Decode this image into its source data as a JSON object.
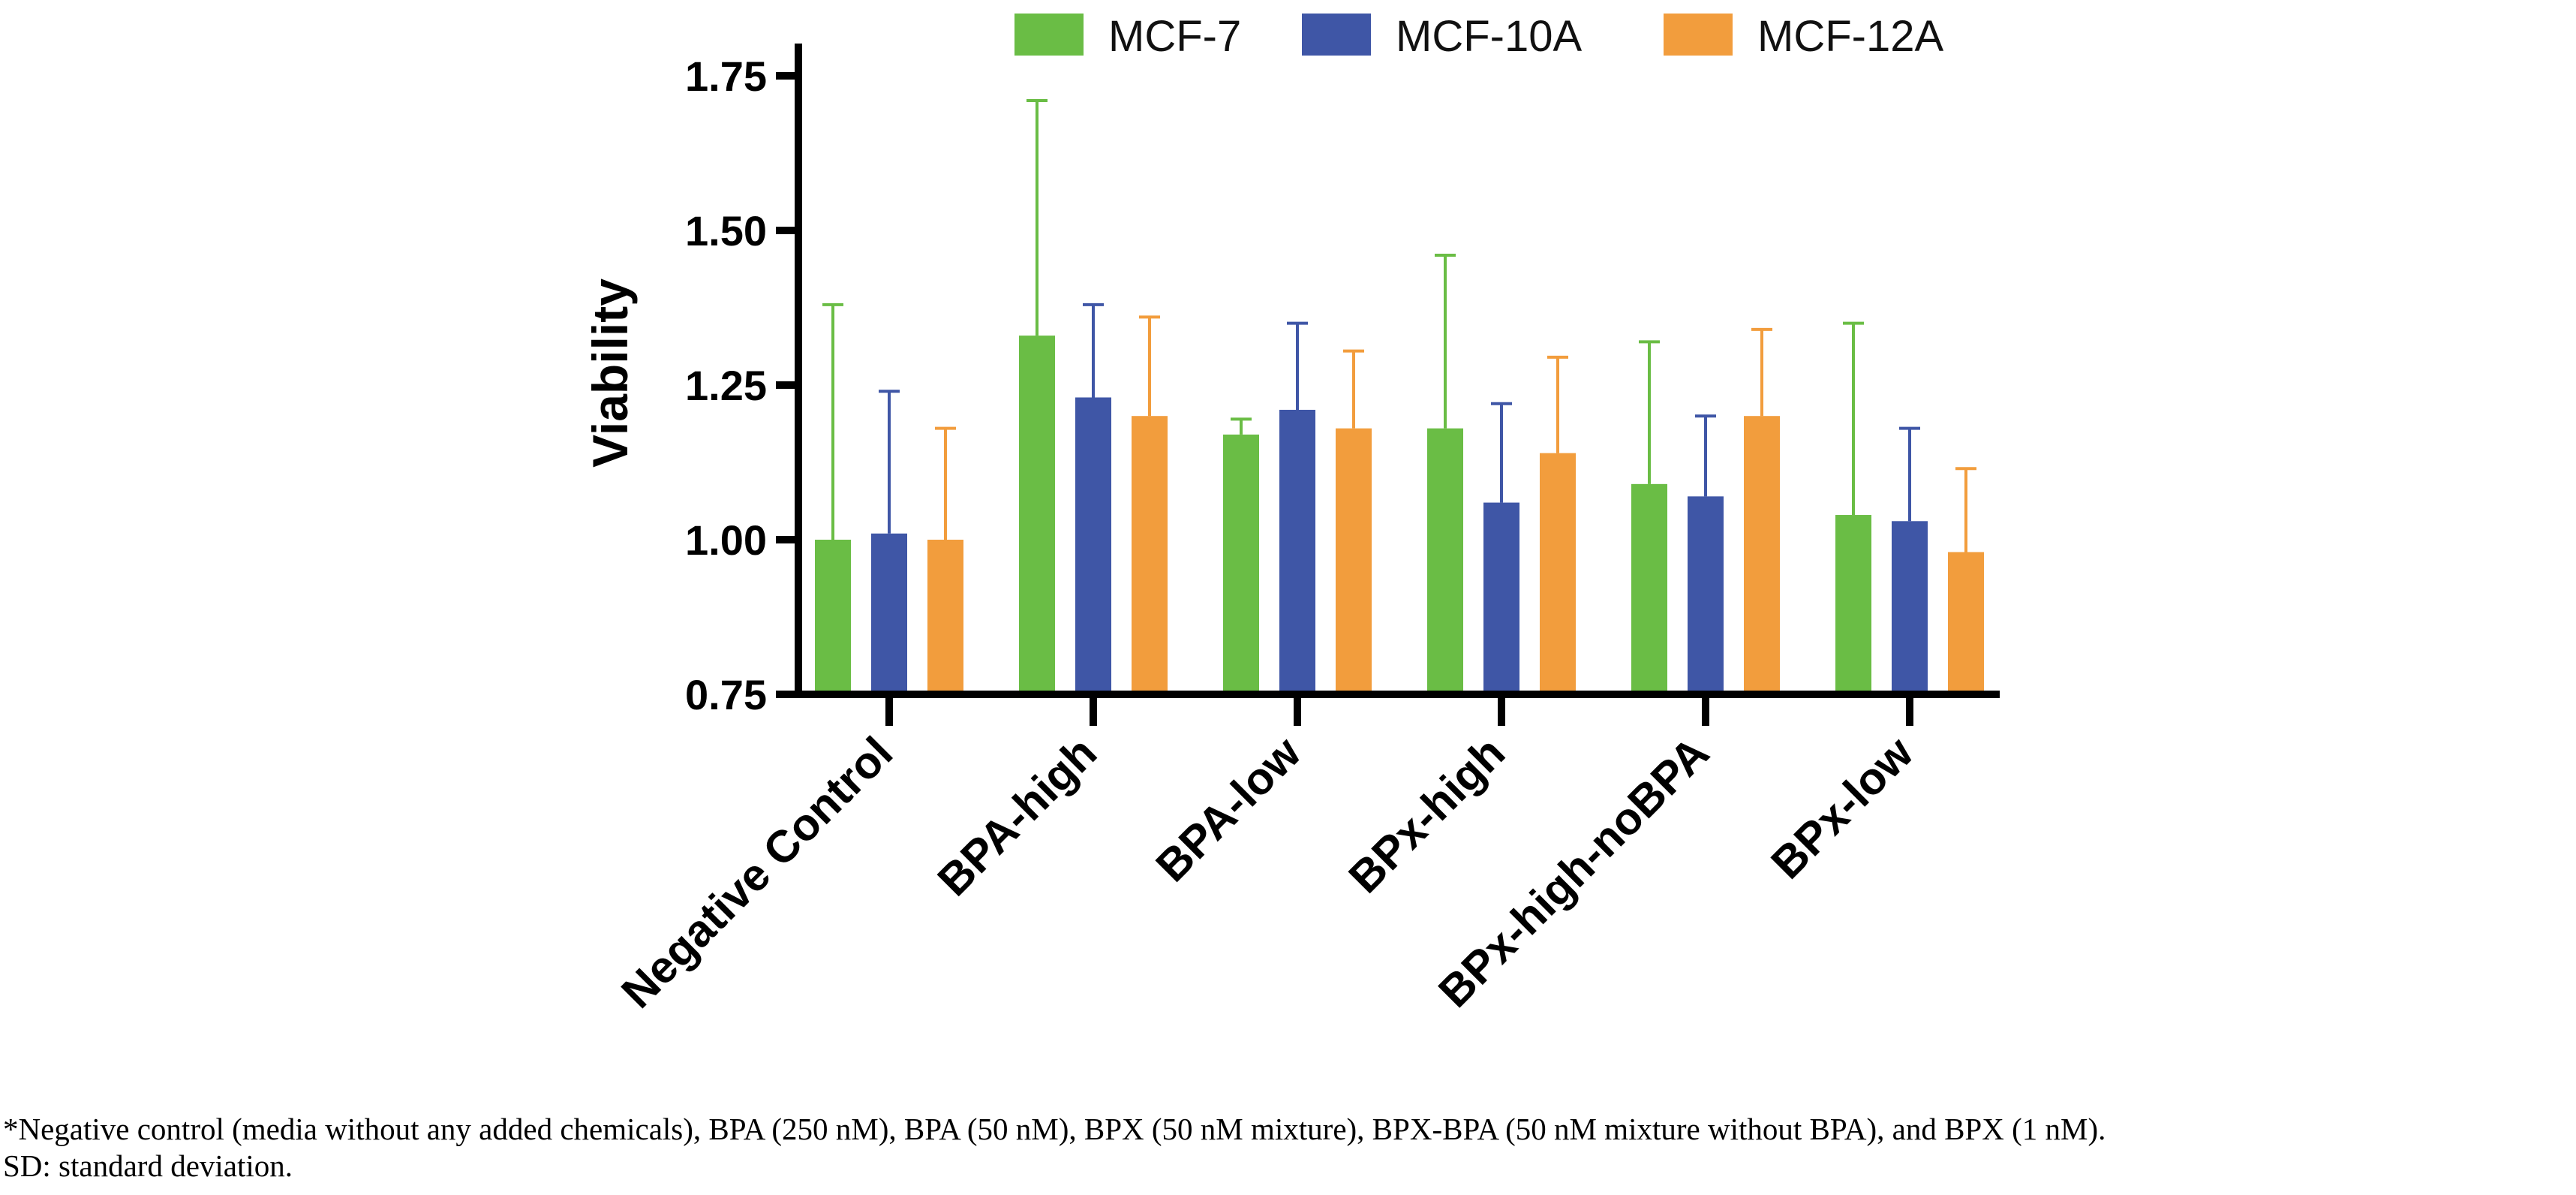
{
  "chart_data": {
    "type": "bar",
    "ylabel": "Viability",
    "xlabel": "",
    "ylim": [
      0.75,
      1.8
    ],
    "yticks": [
      "0.75",
      "1.00",
      "1.25",
      "1.50",
      "1.75"
    ],
    "categories": [
      "Negative Control",
      "BPA-high",
      "BPA-low",
      "BPx-high",
      "BPx-high-noBPA",
      "BPx-low"
    ],
    "series": [
      {
        "name": "MCF-7",
        "color": "#6abd45",
        "values": [
          1.0,
          1.33,
          1.17,
          1.18,
          1.09,
          1.04
        ],
        "sd": [
          0.38,
          0.38,
          0.025,
          0.28,
          0.23,
          0.31
        ]
      },
      {
        "name": "MCF-10A",
        "color": "#3f56a6",
        "values": [
          1.01,
          1.23,
          1.21,
          1.06,
          1.07,
          1.03
        ],
        "sd": [
          0.23,
          0.15,
          0.14,
          0.16,
          0.13,
          0.15
        ]
      },
      {
        "name": "MCF-12A",
        "color": "#f29d3d",
        "values": [
          1.0,
          1.2,
          1.18,
          1.14,
          1.2,
          0.98
        ],
        "sd": [
          0.18,
          0.16,
          0.125,
          0.155,
          0.14,
          0.135
        ]
      }
    ],
    "legend_position": "top",
    "grid": false
  },
  "footnote": {
    "line1": "*Negative control (media without any added chemicals), BPA (250 nM), BPA (50 nM), BPX (50 nM mixture), BPX-BPA (50 nM mixture without BPA), and BPX (1 nM).",
    "line2": "SD: standard deviation."
  }
}
